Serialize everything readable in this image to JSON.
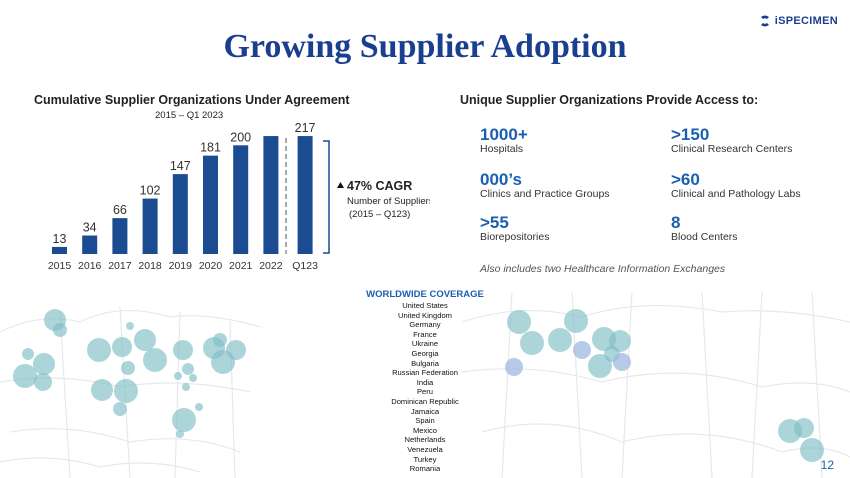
{
  "slide": {
    "title": "Growing Supplier Adoption",
    "brand": "iSPECIMEN",
    "page_number": "12"
  },
  "chart_section": {
    "title": "Cumulative Supplier Organizations Under Agreement",
    "subtitle": "2015 – Q1 2023",
    "cagr": "47% CAGR",
    "cagr_note_line1": "Number of Suppliers",
    "cagr_note_line2": "(2015 – Q123)"
  },
  "chart_data": {
    "type": "bar",
    "categories": [
      "2015",
      "2016",
      "2017",
      "2018",
      "2019",
      "2020",
      "2021",
      "2022",
      "Q123"
    ],
    "values": [
      13,
      34,
      66,
      102,
      147,
      181,
      200,
      217,
      217
    ],
    "data_labels": [
      "13",
      "34",
      "66",
      "102",
      "147",
      "181",
      "200",
      "",
      "217"
    ],
    "title": "Cumulative Supplier Organizations Under Agreement",
    "xlabel": "",
    "ylabel": "",
    "ylim": [
      0,
      230
    ],
    "grid": false,
    "bar_color": "#1b4b91"
  },
  "access_section": {
    "title": "Unique Supplier Organizations Provide Access to:",
    "stats": [
      {
        "value": "1000+",
        "label": "Hospitals"
      },
      {
        "value": ">150",
        "label": "Clinical Research Centers"
      },
      {
        "value": "000’s",
        "label": "Clinics and Practice Groups"
      },
      {
        "value": ">60",
        "label": "Clinical and Pathology Labs"
      },
      {
        "value": ">55",
        "label": "Biorepositories"
      },
      {
        "value": "8",
        "label": "Blood Centers"
      }
    ],
    "footnote": "Also includes two Healthcare Information Exchanges"
  },
  "coverage": {
    "title": "WORLDWIDE COVERAGE",
    "countries": [
      "United States",
      "United Kingdom",
      "Germany",
      "France",
      "Ukraine",
      "Georgia",
      "Bulgaria",
      "Russian Federation",
      "India",
      "Peru",
      "Dominican Republic",
      "Jamaica",
      "Spain",
      "Mexico",
      "Netherlands",
      "Venezuela",
      "Turkey",
      "Romania"
    ]
  },
  "colors": {
    "brand_blue": "#1b3f8f",
    "stat_blue": "#1b5fb0",
    "bubble": "#7fbfc5",
    "bubble_light_blue": "#9fb8e0"
  }
}
